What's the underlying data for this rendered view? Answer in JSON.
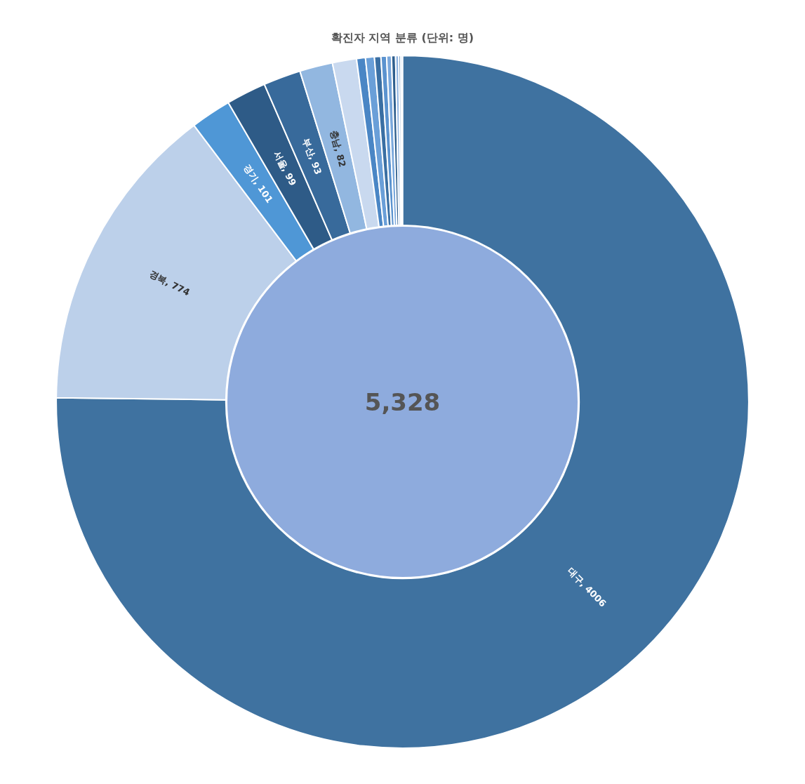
{
  "chart_data": {
    "type": "donut",
    "title": "확진자 지역 분류 (단위: 명)",
    "categories": [
      "대구",
      "경북",
      "경기",
      "서울",
      "부산",
      "충남",
      null,
      null,
      null,
      null,
      null,
      null,
      null,
      null,
      null,
      null
    ],
    "values": [
      4006,
      774,
      101,
      99,
      93,
      82,
      60,
      22,
      22,
      16,
      14,
      12,
      10,
      8,
      5,
      4
    ],
    "colors": [
      "#3f72a0",
      "#bcd0ea",
      "#4f97d6",
      "#2e5b87",
      "#386a9b",
      "#92b7e0",
      "#c9d9ef",
      "#4a86c5",
      "#6a9fd8",
      "#3a6fa3",
      "#5b93cf",
      "#7aa8dc",
      "#2f5f8e",
      "#8fb4e2",
      "#4d7fb3",
      "#a9c4e8"
    ],
    "value_labels": [
      ", 4006",
      ", 774",
      ", 101",
      ", 99",
      ", 93",
      ", 82",
      null,
      null,
      null,
      null,
      null,
      null,
      null,
      null,
      null,
      null
    ],
    "annotations": [
      "5,328"
    ],
    "legend": false
  }
}
